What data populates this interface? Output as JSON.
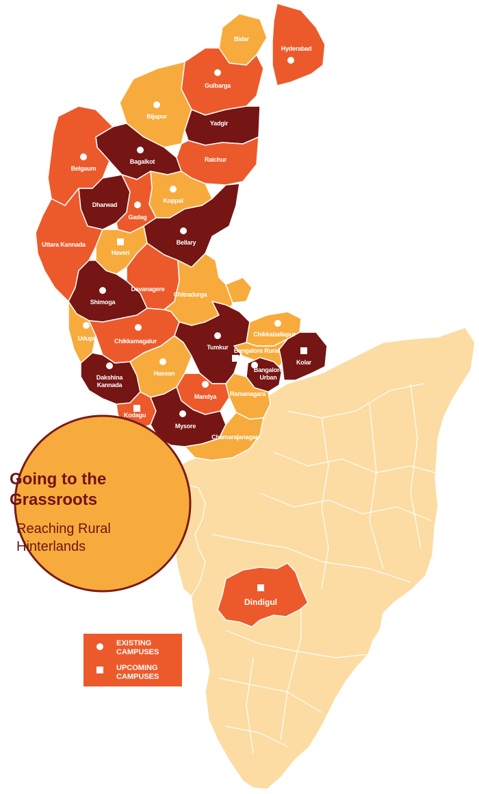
{
  "colors": {
    "dark": "#751514",
    "orange": "#ec5a2b",
    "amber": "#f7ab3c",
    "pale": "#fcdca2",
    "circle": "#f7ab3c",
    "circle_border": "#7a1a14",
    "title": "#6e1414"
  },
  "title": {
    "line1": "Going to the",
    "line2": "Grassroots",
    "sub1": "Reaching Rural",
    "sub2": "Hinterlands"
  },
  "legend": {
    "existing_line1": "EXISTING",
    "existing_line2": "CAMPUSES",
    "upcoming_line1": "UPCOMING",
    "upcoming_line2": "CAMPUSES"
  },
  "districts": [
    {
      "name": "Bidar",
      "campus": "none",
      "fill": "amber"
    },
    {
      "name": "Hyderabad",
      "campus": "existing",
      "fill": "orange"
    },
    {
      "name": "Gulbarga",
      "campus": "existing",
      "fill": "orange"
    },
    {
      "name": "Bijapur",
      "campus": "existing",
      "fill": "amber"
    },
    {
      "name": "Yadgir",
      "campus": "none",
      "fill": "dark"
    },
    {
      "name": "Bagalkot",
      "campus": "existing",
      "fill": "dark"
    },
    {
      "name": "Belgaum",
      "campus": "existing",
      "fill": "orange"
    },
    {
      "name": "Raichur",
      "campus": "none",
      "fill": "orange"
    },
    {
      "name": "Koppal",
      "campus": "existing",
      "fill": "amber"
    },
    {
      "name": "Dharwad",
      "campus": "none",
      "fill": "dark"
    },
    {
      "name": "Gadag",
      "campus": "existing",
      "fill": "orange"
    },
    {
      "name": "Bellary",
      "campus": "existing",
      "fill": "dark"
    },
    {
      "name": "Uttara Kannada",
      "campus": "none",
      "fill": "orange"
    },
    {
      "name": "Haveri",
      "campus": "upcoming",
      "fill": "amber"
    },
    {
      "name": "Shimoga",
      "campus": "existing",
      "fill": "dark"
    },
    {
      "name": "Davanagere",
      "campus": "none",
      "fill": "orange"
    },
    {
      "name": "Chitradurga",
      "campus": "none",
      "fill": "amber"
    },
    {
      "name": "Udupi",
      "campus": "existing",
      "fill": "amber"
    },
    {
      "name": "Chikkamagalur",
      "campus": "existing",
      "fill": "orange"
    },
    {
      "name": "Tumkur",
      "campus": "existing",
      "fill": "dark"
    },
    {
      "name": "Chikkaballapur",
      "campus": "existing",
      "fill": "amber"
    },
    {
      "name": "Kolar",
      "campus": "upcoming",
      "fill": "dark"
    },
    {
      "name": "Bangalore Rural",
      "campus": "upcoming",
      "fill": "amber"
    },
    {
      "name": "Bangalore Urban",
      "campus": "existing",
      "fill": "dark"
    },
    {
      "name": "Dakshina Kannada",
      "campus": "existing",
      "fill": "dark"
    },
    {
      "name": "Hassan",
      "campus": "existing",
      "fill": "amber"
    },
    {
      "name": "Mandya",
      "campus": "existing",
      "fill": "orange"
    },
    {
      "name": "Ramanagara",
      "campus": "none",
      "fill": "amber"
    },
    {
      "name": "Kodagu",
      "campus": "upcoming",
      "fill": "orange"
    },
    {
      "name": "Mysore",
      "campus": "existing",
      "fill": "dark"
    },
    {
      "name": "Chamarajanagar",
      "campus": "none",
      "fill": "amber"
    },
    {
      "name": "Dindigul",
      "campus": "upcoming",
      "fill": "orange"
    }
  ]
}
